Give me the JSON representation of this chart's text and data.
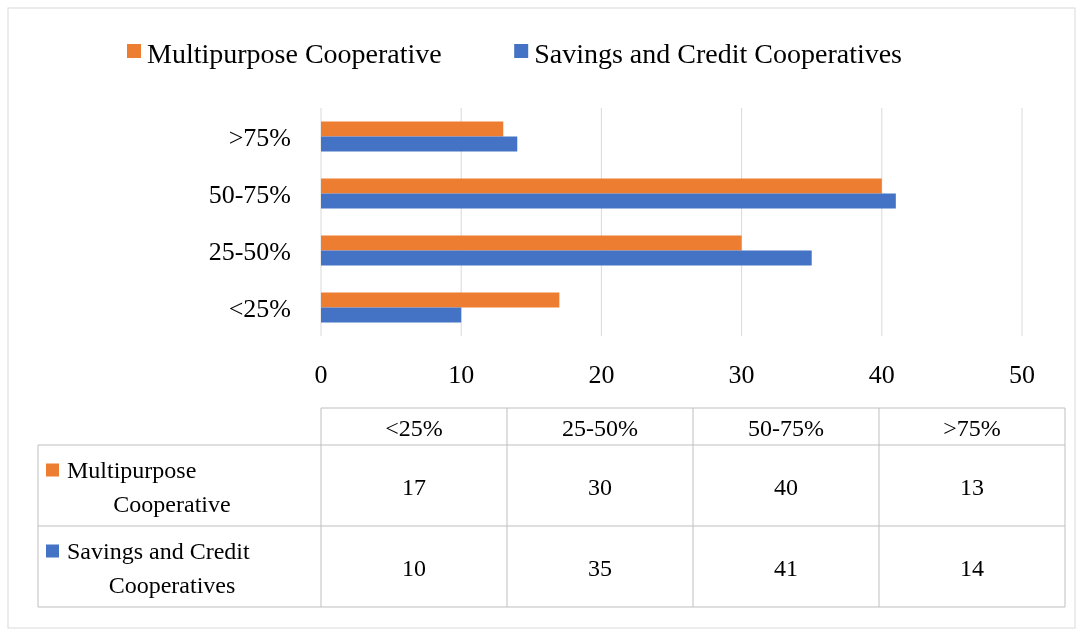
{
  "chart_data": [
    {
      "type": "bar",
      "orientation": "horizontal",
      "categories": [
        ">75%",
        "50-75%",
        "25-50%",
        "<25%"
      ],
      "series": [
        {
          "name": "Multipurpose Cooperative",
          "color": "#ed7d31",
          "values": [
            13,
            40,
            30,
            17
          ]
        },
        {
          "name": "Savings and Credit Cooperatives",
          "color": "#4472c4",
          "values": [
            14,
            41,
            35,
            10
          ]
        }
      ],
      "xlim": [
        0,
        50
      ],
      "xticks": [
        0,
        10,
        20,
        30,
        40,
        50
      ],
      "grid": "x",
      "legend": "top"
    },
    {
      "type": "heatmap",
      "categories": [
        "<25%",
        "25-50%",
        "50-75%",
        ">75%"
      ],
      "y_categories": [
        "Multipurpose Cooperative",
        "Savings and Credit Cooperatives"
      ],
      "cells": [
        [
          17,
          30,
          40,
          13
        ],
        [
          10,
          35,
          41,
          14
        ]
      ],
      "data_labels": true
    }
  ]
}
